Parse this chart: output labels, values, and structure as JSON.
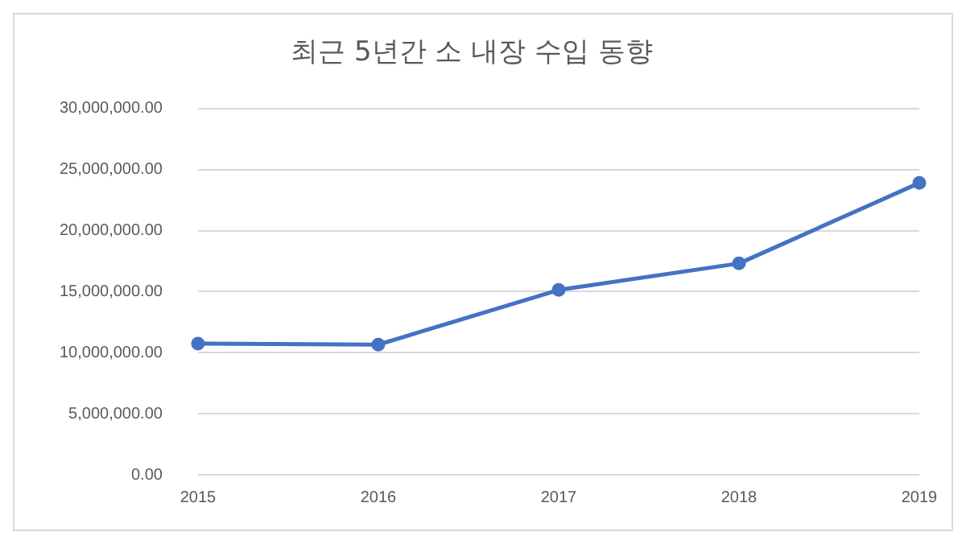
{
  "chart_data": {
    "type": "line",
    "title": "최근 5년간 소 내장 수입 동향",
    "categories": [
      "2015",
      "2016",
      "2017",
      "2018",
      "2019"
    ],
    "series": [
      {
        "color": "#4472c4",
        "values": [
          10750000,
          10660000,
          15140000,
          17310000,
          23900000
        ]
      }
    ],
    "ylim": [
      0,
      30000000
    ],
    "yticks": [
      {
        "value": 0,
        "label": "0.00"
      },
      {
        "value": 5000000,
        "label": "5,000,000.00"
      },
      {
        "value": 10000000,
        "label": "10,000,000.00"
      },
      {
        "value": 15000000,
        "label": "15,000,000.00"
      },
      {
        "value": 20000000,
        "label": "20,000,000.00"
      },
      {
        "value": 25000000,
        "label": "25,000,000.00"
      },
      {
        "value": 30000000,
        "label": "30,000,000.00"
      }
    ],
    "grid": "y",
    "legend": false,
    "marker": "circle",
    "line_style": "solid"
  }
}
